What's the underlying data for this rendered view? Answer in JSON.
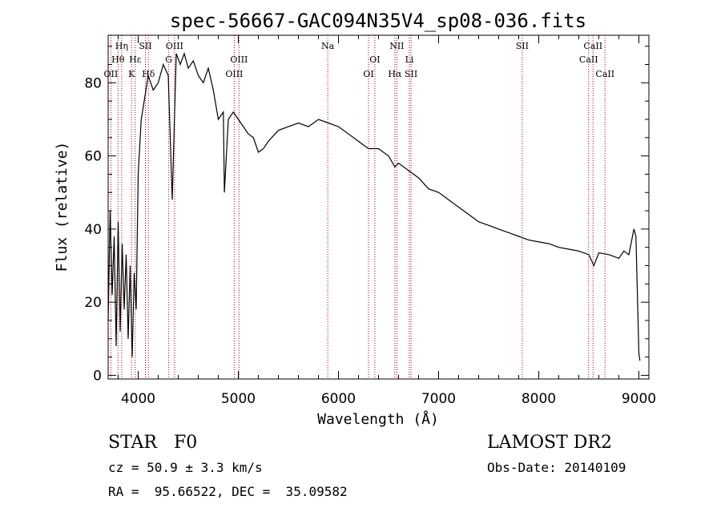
{
  "chart_data": {
    "type": "line",
    "title": "spec-56667-GAC094N35V4_sp08-036.fits",
    "xlabel": "Wavelength (Å)",
    "ylabel": "Flux (relative)",
    "xlim": [
      3700,
      9100
    ],
    "ylim": [
      -1,
      93
    ],
    "xticks": [
      4000,
      5000,
      6000,
      7000,
      8000,
      9000
    ],
    "yticks": [
      0,
      20,
      40,
      60,
      80
    ],
    "series": [
      {
        "x": [
          3700,
          3720,
          3740,
          3760,
          3780,
          3800,
          3820,
          3840,
          3860,
          3880,
          3900,
          3920,
          3940,
          3960,
          3980,
          4000,
          4030,
          4060,
          4100,
          4150,
          4200,
          4250,
          4300,
          4340,
          4380,
          4420,
          4460,
          4500,
          4550,
          4600,
          4650,
          4700,
          4750,
          4800,
          4850,
          4861,
          4900,
          4950,
          5000,
          5050,
          5100,
          5150,
          5200,
          5250,
          5300,
          5400,
          5500,
          5600,
          5700,
          5800,
          5900,
          6000,
          6100,
          6200,
          6300,
          6400,
          6500,
          6563,
          6600,
          6700,
          6800,
          6900,
          7000,
          7100,
          7200,
          7300,
          7400,
          7500,
          7600,
          7700,
          7800,
          7900,
          8000,
          8100,
          8200,
          8300,
          8400,
          8500,
          8550,
          8600,
          8700,
          8800,
          8850,
          8900,
          8950,
          8970,
          9000,
          9010
        ],
        "y": [
          15,
          45,
          22,
          38,
          8,
          42,
          12,
          36,
          18,
          33,
          10,
          30,
          5,
          28,
          18,
          55,
          70,
          75,
          82,
          78,
          80,
          85,
          82,
          48,
          88,
          85,
          88,
          84,
          86,
          82,
          80,
          84,
          78,
          70,
          72,
          50,
          70,
          72,
          70,
          68,
          66,
          65,
          61,
          62,
          64,
          67,
          68,
          69,
          68,
          70,
          69,
          68,
          66,
          64,
          62,
          62,
          60,
          57,
          58,
          56,
          54,
          51,
          50,
          48,
          46,
          44,
          42,
          41,
          40,
          39,
          38,
          37,
          36.5,
          36,
          35,
          34.5,
          34,
          33,
          30,
          33.5,
          33,
          32,
          34,
          33,
          40,
          38,
          6,
          4
        ]
      }
    ],
    "lines": [
      {
        "label": "Hη",
        "x": 3835,
        "row": 0
      },
      {
        "label": "Hθ",
        "x": 3798,
        "row": 1
      },
      {
        "label": "OII",
        "x": 3727,
        "row": 2
      },
      {
        "label": "Hε",
        "x": 3970,
        "row": 1
      },
      {
        "label": "K",
        "x": 3934,
        "row": 2
      },
      {
        "label": "SII",
        "x": 4072,
        "row": 0
      },
      {
        "label": "Hδ",
        "x": 4102,
        "row": 2
      },
      {
        "label": "OIII",
        "x": 4363,
        "row": 0
      },
      {
        "label": "G",
        "x": 4305,
        "row": 1
      },
      {
        "label": "OIII",
        "x": 5007,
        "row": 1
      },
      {
        "label": "OIII",
        "x": 4959,
        "row": 2
      },
      {
        "label": "Na",
        "x": 5893,
        "row": 0
      },
      {
        "label": "OI",
        "x": 6363,
        "row": 1
      },
      {
        "label": "OI",
        "x": 6300,
        "row": 2
      },
      {
        "label": "NII",
        "x": 6583,
        "row": 0
      },
      {
        "label": "Hα",
        "x": 6563,
        "row": 2
      },
      {
        "label": "Li",
        "x": 6708,
        "row": 1
      },
      {
        "label": "SII",
        "x": 6725,
        "row": 2
      },
      {
        "label": "SII",
        "x": 7835,
        "row": 0
      },
      {
        "label": "CaII",
        "x": 8542,
        "row": 0
      },
      {
        "label": "CaII",
        "x": 8498,
        "row": 1
      },
      {
        "label": "CaII",
        "x": 8662,
        "row": 2
      }
    ]
  },
  "info": {
    "object": "STAR   F0",
    "survey": "LAMOST DR2",
    "cz": "cz = 50.9 ± 3.3 km/s",
    "obsdate": "Obs-Date: 20140109",
    "radec": "RA =  95.66522, DEC =  35.09582"
  }
}
